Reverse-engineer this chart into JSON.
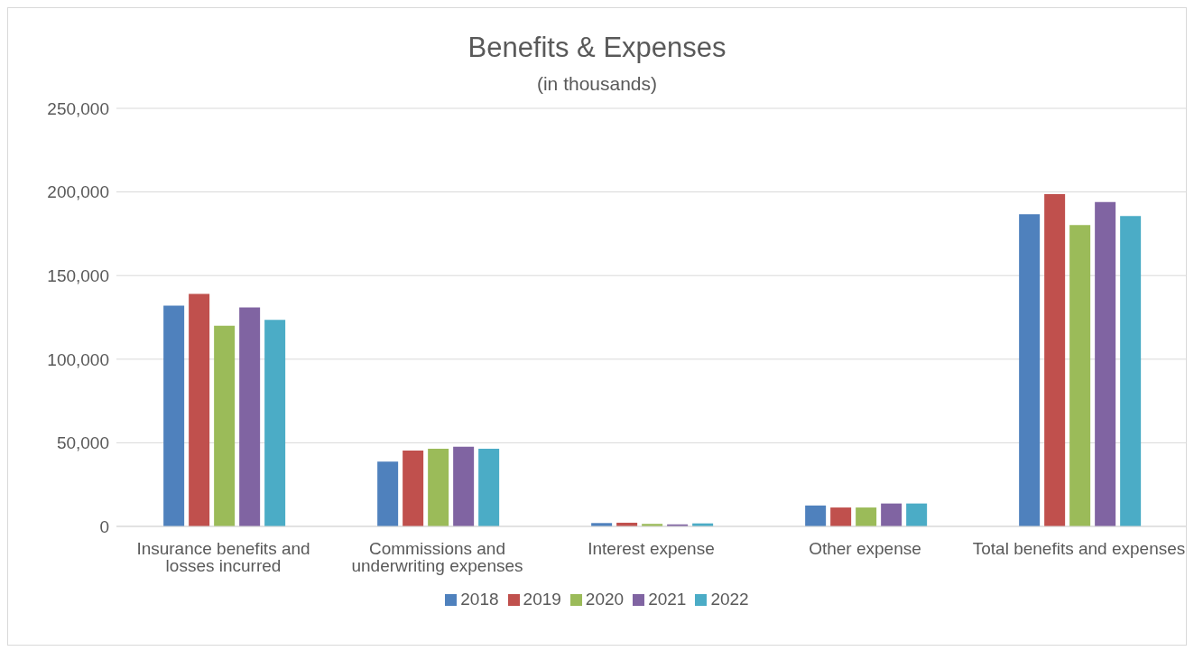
{
  "chart_data": {
    "type": "bar",
    "title": "Benefits & Expenses",
    "subtitle": "(in thousands)",
    "categories": [
      "Insurance benefits and losses incurred",
      "Commissions and underwriting expenses",
      "Interest expense",
      "Other expense",
      "Total benefits and expenses"
    ],
    "series": [
      {
        "name": "2018",
        "color": "#4f81bd",
        "values": [
          132000,
          38800,
          2000,
          12500,
          186700
        ]
      },
      {
        "name": "2019",
        "color": "#c0504d",
        "values": [
          139000,
          45300,
          2200,
          11300,
          198700
        ]
      },
      {
        "name": "2020",
        "color": "#9bbb59",
        "values": [
          120000,
          46500,
          1500,
          11300,
          180200
        ]
      },
      {
        "name": "2021",
        "color": "#8064a2",
        "values": [
          131000,
          47700,
          1200,
          13700,
          194000
        ]
      },
      {
        "name": "2022",
        "color": "#4bacc6",
        "values": [
          123500,
          46500,
          1800,
          13700,
          185600
        ]
      }
    ],
    "ylim": [
      0,
      250000
    ],
    "yticks": [
      {
        "value": 0,
        "label": "0"
      },
      {
        "value": 50000,
        "label": "50,000"
      },
      {
        "value": 100000,
        "label": "100,000"
      },
      {
        "value": 150000,
        "label": "150,000"
      },
      {
        "value": 200000,
        "label": "200,000"
      },
      {
        "value": 250000,
        "label": "250,000"
      }
    ],
    "grid": "y",
    "legend": "bottom"
  }
}
